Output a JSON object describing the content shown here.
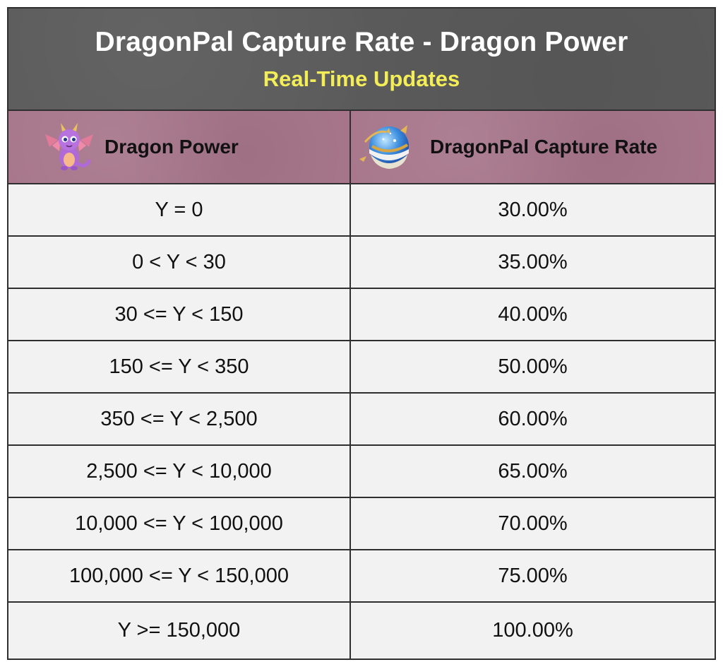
{
  "header": {
    "title": "DragonPal Capture Rate - Dragon Power",
    "subtitle": "Real-Time Updates"
  },
  "columns": {
    "left": {
      "label": "Dragon Power",
      "icon": "dragon-icon"
    },
    "right": {
      "label": "DragonPal Capture Rate",
      "icon": "capture-orb-icon"
    }
  },
  "rows": [
    {
      "power": "Y = 0",
      "rate": "30.00%"
    },
    {
      "power": "0 < Y < 30",
      "rate": "35.00%"
    },
    {
      "power": "30 <= Y < 150",
      "rate": "40.00%"
    },
    {
      "power": "150 <= Y < 350",
      "rate": "50.00%"
    },
    {
      "power": "350 <= Y < 2,500",
      "rate": "60.00%"
    },
    {
      "power": "2,500 <= Y < 10,000",
      "rate": "65.00%"
    },
    {
      "power": "10,000 <= Y < 100,000",
      "rate": "70.00%"
    },
    {
      "power": "100,000 <= Y < 150,000",
      "rate": "75.00%"
    },
    {
      "power": "Y >= 150,000",
      "rate": "100.00%"
    }
  ],
  "colors": {
    "header_bg": "#5b5b5b",
    "title": "#ffffff",
    "subtitle": "#f3ee57",
    "column_header_bg": "#a7768b",
    "cell_bg": "#f2f2f2",
    "grid": "#2f2f2f"
  }
}
